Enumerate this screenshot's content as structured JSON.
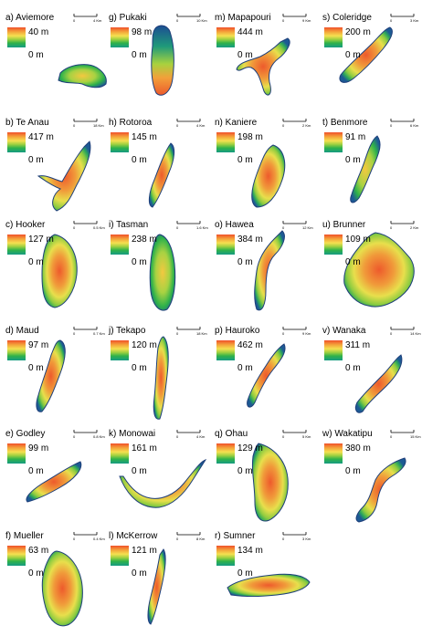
{
  "colors": {
    "ramp": [
      "#f0502a",
      "#f4a43a",
      "#f5e050",
      "#9fd040",
      "#2fb24a",
      "#169b83",
      "#1c4e93"
    ],
    "outline": "#1e3e7a"
  },
  "panels": [
    {
      "id": "a",
      "label": "a) Aviemore",
      "max_depth": "40 m",
      "min_depth": "0 m",
      "scale": [
        "0",
        "4 Km"
      ]
    },
    {
      "id": "g",
      "label": "g) Pukaki",
      "max_depth": "98 m",
      "min_depth": "0 m",
      "scale": [
        "0",
        "10 Km"
      ]
    },
    {
      "id": "m",
      "label": "m) Mapapouri",
      "max_depth": "444 m",
      "min_depth": "0 m",
      "scale": [
        "0",
        "9 Km"
      ]
    },
    {
      "id": "s",
      "label": "s) Coleridge",
      "max_depth": "200 m",
      "min_depth": "0 m",
      "scale": [
        "0",
        "3 Km"
      ]
    },
    {
      "id": "b",
      "label": "b) Te Anau",
      "max_depth": "417 m",
      "min_depth": "0 m",
      "scale": [
        "0",
        "18 Km"
      ]
    },
    {
      "id": "h",
      "label": "h) Rotoroa",
      "max_depth": "145 m",
      "min_depth": "0 m",
      "scale": [
        "0",
        "4 Km"
      ]
    },
    {
      "id": "n",
      "label": "n) Kaniere",
      "max_depth": "198 m",
      "min_depth": "0 m",
      "scale": [
        "0",
        "2 Km"
      ]
    },
    {
      "id": "t",
      "label": "t) Benmore",
      "max_depth": "91 m",
      "min_depth": "0 m",
      "scale": [
        "0",
        "6 Km"
      ]
    },
    {
      "id": "c",
      "label": "c) Hooker",
      "max_depth": "127 m",
      "min_depth": "0 m",
      "scale": [
        "0",
        "0.5 Km"
      ]
    },
    {
      "id": "i",
      "label": "i) Tasman",
      "max_depth": "238 m",
      "min_depth": "0 m",
      "scale": [
        "0",
        "1.6 Km"
      ]
    },
    {
      "id": "o",
      "label": "o) Hawea",
      "max_depth": "384 m",
      "min_depth": "0 m",
      "scale": [
        "0",
        "12 Km"
      ]
    },
    {
      "id": "u",
      "label": "u) Brunner",
      "max_depth": "109 m",
      "min_depth": "0 m",
      "scale": [
        "0",
        "2 Km"
      ]
    },
    {
      "id": "d",
      "label": "d) Maud",
      "max_depth": "97 m",
      "min_depth": "0 m",
      "scale": [
        "0",
        "0.7 Km"
      ]
    },
    {
      "id": "j",
      "label": "j) Tekapo",
      "max_depth": "120 m",
      "min_depth": "0 m",
      "scale": [
        "0",
        "18 Km"
      ]
    },
    {
      "id": "p",
      "label": "p) Hauroko",
      "max_depth": "462 m",
      "min_depth": "0 m",
      "scale": [
        "0",
        "9 Km"
      ]
    },
    {
      "id": "v",
      "label": "v) Wanaka",
      "max_depth": "311 m",
      "min_depth": "0 m",
      "scale": [
        "0",
        "14 Km"
      ]
    },
    {
      "id": "e",
      "label": "e) Godley",
      "max_depth": "99 m",
      "min_depth": "0 m",
      "scale": [
        "0",
        "0.8 Km"
      ]
    },
    {
      "id": "k",
      "label": "k) Monowai",
      "max_depth": "161 m",
      "min_depth": "0 m",
      "scale": [
        "0",
        "4 Km"
      ]
    },
    {
      "id": "q",
      "label": "q) Ohau",
      "max_depth": "129 m",
      "min_depth": "0 m",
      "scale": [
        "0",
        "5 Km"
      ]
    },
    {
      "id": "w",
      "label": "w) Wakatipu",
      "max_depth": "380 m",
      "min_depth": "0 m",
      "scale": [
        "0",
        "15 Km"
      ]
    },
    {
      "id": "f",
      "label": "f) Mueller",
      "max_depth": "63 m",
      "min_depth": "0 m",
      "scale": [
        "0",
        "0.4 Km"
      ]
    },
    {
      "id": "l",
      "label": "l) McKerrow",
      "max_depth": "121 m",
      "min_depth": "0 m",
      "scale": [
        "0",
        "8 Km"
      ]
    },
    {
      "id": "r",
      "label": "r) Sumner",
      "max_depth": "134 m",
      "min_depth": "0 m",
      "scale": [
        "0",
        "3 Km"
      ]
    }
  ]
}
